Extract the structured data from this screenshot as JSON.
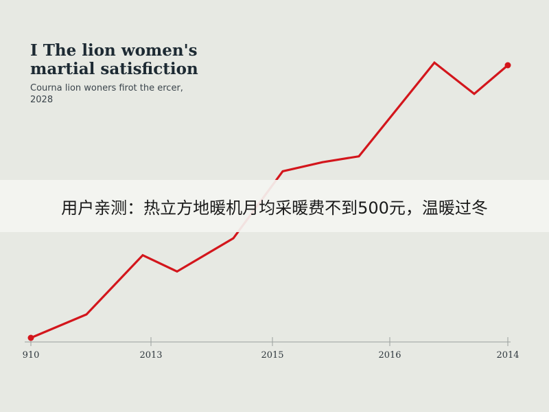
{
  "chart_data": {
    "type": "line",
    "title": "I The lion women's martial satisfiction",
    "subtitle": "Courna lion woners firot the ercer, 2028",
    "x_tick_labels": [
      "910",
      "2013",
      "2015",
      "2016",
      "2014"
    ],
    "series": [
      {
        "color": "#d3161c",
        "values": [
          0,
          36,
          127,
          102,
          153,
          256,
          270,
          279,
          423,
          375,
          419
        ]
      }
    ],
    "ylim": [
      0,
      450
    ],
    "grid": false,
    "legend": "none"
  },
  "banner": {
    "text": "用户亲测：热立方地暖机月均采暖费不到500元，温暖过冬"
  }
}
